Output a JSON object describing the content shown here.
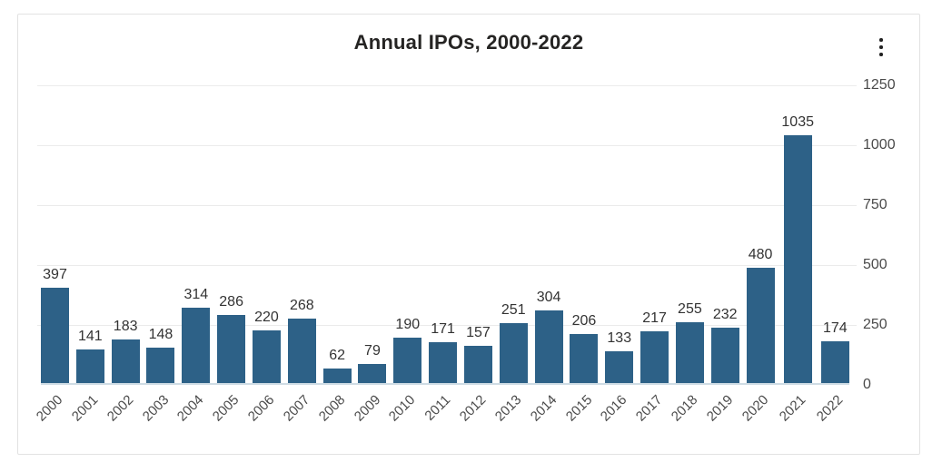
{
  "card": {
    "more_options_icon": "kebab-menu-vertical-ellipsis"
  },
  "colors": {
    "bar": "#2d6187",
    "gridline": "#ebebeb",
    "axis_line": "#cfdce4",
    "title_text": "#252423",
    "label_text": "#333333",
    "tick_text": "#4a4a4a",
    "card_border": "#e2e2e2",
    "background": "#ffffff"
  },
  "chart_data": {
    "type": "bar",
    "title": "Annual IPOs, 2000-2022",
    "categories": [
      "2000",
      "2001",
      "2002",
      "2003",
      "2004",
      "2005",
      "2006",
      "2007",
      "2008",
      "2009",
      "2010",
      "2011",
      "2012",
      "2013",
      "2014",
      "2015",
      "2016",
      "2017",
      "2018",
      "2019",
      "2020",
      "2021",
      "2022"
    ],
    "values": [
      397,
      141,
      183,
      148,
      314,
      286,
      220,
      268,
      62,
      79,
      190,
      171,
      157,
      251,
      304,
      206,
      133,
      217,
      255,
      232,
      480,
      1035,
      174
    ],
    "xlabel": "",
    "ylabel": "",
    "ylim": [
      0,
      1250
    ],
    "yticks": [
      0,
      250,
      500,
      750,
      1000,
      1250
    ],
    "y_axis_side": "right",
    "grid": true,
    "legend": false,
    "data_labels": true
  }
}
